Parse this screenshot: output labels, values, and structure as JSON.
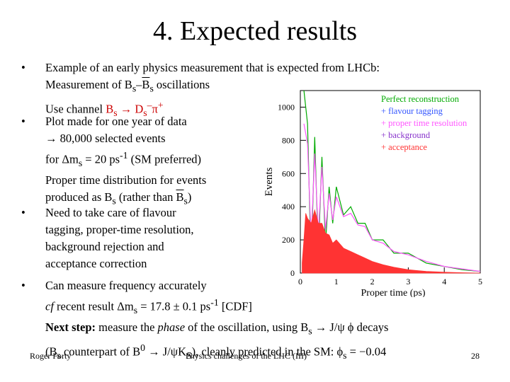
{
  "slide": {
    "title": "4.  Expected results",
    "bullet_char": "•"
  },
  "bullet1": {
    "line1": "Example of an early physics measurement that is expected from LHCb:",
    "line2_a": "Measurement of B",
    "line2_s1": "s",
    "line2_dash": "–",
    "line2_b": "B",
    "line2_s2": "s",
    "line2_c": " oscillations",
    "line3_a": "Use channel ",
    "line3_red": "B",
    "line3_red_s": "s",
    "line3_arrow": " → D",
    "line3_red2_s": "s",
    "line3_red2_sup": "–",
    "line3_pi": "π",
    "line3_pi_sup": "+"
  },
  "bullet2": {
    "line1": "Plot made for one year of data",
    "line2": "→ 80,000 selected events",
    "line3_a": "for Δm",
    "line3_s": "s",
    "line3_b": " = 20 ps",
    "line3_sup": "-1",
    "line3_c": " (SM preferred)",
    "line4": "Proper time distribution for events",
    "line5_a": "produced as B",
    "line5_s": "s",
    "line5_b": " (rather than ",
    "line5_c": "B",
    "line5_s2": "s",
    "line5_d": ")"
  },
  "bullet3": {
    "line1": "Need to take care of flavour",
    "line2": "tagging, proper-time resolution,",
    "line3": "background rejection and",
    "line4": "acceptance correction"
  },
  "bullet4": {
    "line1": "Can measure frequency accurately",
    "line2_a": "cf",
    "line2_b": " recent result Δm",
    "line2_s": "s",
    "line2_c": " = 17.8 ± 0.1 ps",
    "line2_sup": "-1",
    "line2_d": " [CDF]",
    "line3_a": "Next step:",
    "line3_b": " measure the ",
    "line3_c": "phase",
    "line3_d": " of the oscillation, using B",
    "line3_s": "s",
    "line3_e": " → J/ψ ϕ decays",
    "line4_a": "(B",
    "line4_s": "s",
    "line4_b": " counterpart of B",
    "line4_sup": "0",
    "line4_c": " → J/ψK",
    "line4_s2": "S",
    "line4_d": "), cleanly predicted in the SM:  ϕ",
    "line4_s3": "s",
    "line4_e": " = −0.04"
  },
  "footer": {
    "left": "Roger Forty",
    "center": "Physics challenges of the LHC  (III)",
    "right": "28"
  },
  "chart_data": {
    "type": "histogram",
    "xlabel": "Proper time  (ps)",
    "ylabel": "Events",
    "xlim": [
      0,
      5
    ],
    "ylim": [
      0,
      1100
    ],
    "x_ticks": [
      "0",
      "1",
      "2",
      "3",
      "4",
      "5"
    ],
    "y_ticks": [
      "0",
      "200",
      "400",
      "600",
      "800",
      "1000"
    ],
    "legend_position": "top-right",
    "colors": {
      "perfect": "#00aa00",
      "tagging": "#3355ff",
      "resolution": "#ff55ff",
      "background": "#8833cc",
      "acceptance": "#ff3333"
    },
    "legend": [
      {
        "label": "Perfect reconstruction",
        "color": "#00aa00"
      },
      {
        "label": "+ flavour tagging",
        "color": "#3355ff"
      },
      {
        "label": "+ proper time resolution",
        "color": "#ff55ff"
      },
      {
        "label": "+ background",
        "color": "#8833cc"
      },
      {
        "label": "+ acceptance",
        "color": "#ff3333"
      }
    ],
    "series": [
      {
        "name": "Perfect reconstruction",
        "x": [
          0.1,
          0.2,
          0.3,
          0.4,
          0.5,
          0.6,
          0.7,
          0.8,
          0.9,
          1.0,
          1.2,
          1.4,
          1.6,
          1.8,
          2.0,
          2.3,
          2.6,
          3.0,
          3.5,
          4.0,
          4.5,
          5.0
        ],
        "y": [
          1100,
          900,
          50,
          820,
          120,
          700,
          180,
          520,
          300,
          520,
          350,
          400,
          300,
          300,
          200,
          200,
          120,
          120,
          60,
          40,
          20,
          10
        ]
      },
      {
        "name": "+ proper time resolution",
        "x": [
          0.1,
          0.2,
          0.3,
          0.4,
          0.5,
          0.6,
          0.7,
          0.8,
          0.9,
          1.0,
          1.2,
          1.4,
          1.6,
          1.8,
          2.0,
          2.3,
          2.6,
          3.0,
          3.5,
          4.0,
          4.5,
          5.0
        ],
        "y": [
          900,
          780,
          200,
          720,
          230,
          640,
          260,
          480,
          320,
          460,
          340,
          360,
          290,
          280,
          200,
          180,
          130,
          110,
          70,
          40,
          25,
          10
        ]
      },
      {
        "name": "+ acceptance",
        "x": [
          0.05,
          0.1,
          0.15,
          0.2,
          0.3,
          0.4,
          0.5,
          0.6,
          0.7,
          0.8,
          0.9,
          1.0,
          1.2,
          1.4,
          1.6,
          1.8,
          2.0,
          2.3,
          2.6,
          3.0,
          3.5,
          4.0,
          4.5,
          5.0
        ],
        "y": [
          60,
          200,
          360,
          330,
          300,
          380,
          300,
          300,
          240,
          230,
          180,
          200,
          150,
          130,
          110,
          90,
          70,
          50,
          35,
          20,
          10,
          5,
          2,
          0
        ]
      }
    ]
  }
}
